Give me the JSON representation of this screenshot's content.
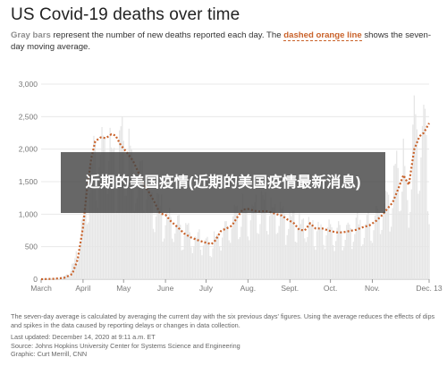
{
  "title": "US Covid-19 deaths over time",
  "subtitle": {
    "gray_bars": "Gray bars",
    "part1": " represent the number of new deaths reported each day. The ",
    "orange_line": "dashed orange line",
    "part2": " shows the seven-day moving average."
  },
  "overlay_text": "近期的美国疫情(近期的美国疫情最新消息)",
  "footnote": "The seven-day average is calculated by averaging the current day with the six previous days' figures. Using the average reduces the effects of dips and spikes in the data caused by reporting delays or changes in data collection.",
  "last_updated": "Last updated: December 14, 2020 at 9:11 a.m. ET",
  "source": "Source: Johns Hopkins University Center for Systems Science and Engineering",
  "graphic": "Graphic: Curt Merrill, CNN",
  "colors": {
    "bars": "#e6e6e6",
    "line": "#c9622a",
    "grid": "#e8e8e8",
    "axis_text": "#777777"
  },
  "chart_data": {
    "type": "bar",
    "bars_description": "daily new deaths",
    "line_description": "seven-day moving average",
    "x_range": [
      "2020-03-01",
      "2020-12-13"
    ],
    "ylim": [
      0,
      3000
    ],
    "yticks": [
      0,
      500,
      1000,
      1500,
      2000,
      2500,
      3000
    ],
    "ytick_labels": [
      "0",
      "500",
      "1,000",
      "1,500",
      "2,000",
      "2,500",
      "3,000"
    ],
    "xticks": [
      {
        "date": "2020-03-01",
        "label": "March"
      },
      {
        "date": "2020-04-01",
        "label": "April"
      },
      {
        "date": "2020-05-01",
        "label": "May"
      },
      {
        "date": "2020-06-01",
        "label": "June"
      },
      {
        "date": "2020-07-01",
        "label": "July"
      },
      {
        "date": "2020-08-01",
        "label": "Aug."
      },
      {
        "date": "2020-09-01",
        "label": "Sept."
      },
      {
        "date": "2020-10-01",
        "label": "Oct."
      },
      {
        "date": "2020-11-01",
        "label": "Nov."
      },
      {
        "date": "2020-12-13",
        "label": "Dec. 13"
      }
    ],
    "moving_average": [
      {
        "date": "2020-03-01",
        "value": 0
      },
      {
        "date": "2020-03-10",
        "value": 5
      },
      {
        "date": "2020-03-18",
        "value": 20
      },
      {
        "date": "2020-03-24",
        "value": 80
      },
      {
        "date": "2020-03-28",
        "value": 300
      },
      {
        "date": "2020-04-01",
        "value": 800
      },
      {
        "date": "2020-04-04",
        "value": 1400
      },
      {
        "date": "2020-04-07",
        "value": 1850
      },
      {
        "date": "2020-04-10",
        "value": 2120
      },
      {
        "date": "2020-04-14",
        "value": 2180
      },
      {
        "date": "2020-04-18",
        "value": 2170
      },
      {
        "date": "2020-04-22",
        "value": 2230
      },
      {
        "date": "2020-04-25",
        "value": 2210
      },
      {
        "date": "2020-04-29",
        "value": 2060
      },
      {
        "date": "2020-05-03",
        "value": 1960
      },
      {
        "date": "2020-05-08",
        "value": 1820
      },
      {
        "date": "2020-05-12",
        "value": 1640
      },
      {
        "date": "2020-05-16",
        "value": 1460
      },
      {
        "date": "2020-05-20",
        "value": 1330
      },
      {
        "date": "2020-05-24",
        "value": 1180
      },
      {
        "date": "2020-05-28",
        "value": 1010
      },
      {
        "date": "2020-06-01",
        "value": 990
      },
      {
        "date": "2020-06-05",
        "value": 890
      },
      {
        "date": "2020-06-10",
        "value": 800
      },
      {
        "date": "2020-06-15",
        "value": 700
      },
      {
        "date": "2020-06-20",
        "value": 640
      },
      {
        "date": "2020-06-25",
        "value": 600
      },
      {
        "date": "2020-07-01",
        "value": 560
      },
      {
        "date": "2020-07-05",
        "value": 540
      },
      {
        "date": "2020-07-08",
        "value": 600
      },
      {
        "date": "2020-07-12",
        "value": 740
      },
      {
        "date": "2020-07-16",
        "value": 780
      },
      {
        "date": "2020-07-20",
        "value": 820
      },
      {
        "date": "2020-07-24",
        "value": 950
      },
      {
        "date": "2020-07-28",
        "value": 1070
      },
      {
        "date": "2020-08-01",
        "value": 1080
      },
      {
        "date": "2020-08-06",
        "value": 1050
      },
      {
        "date": "2020-08-10",
        "value": 1040
      },
      {
        "date": "2020-08-14",
        "value": 1050
      },
      {
        "date": "2020-08-18",
        "value": 1030
      },
      {
        "date": "2020-08-22",
        "value": 1000
      },
      {
        "date": "2020-08-26",
        "value": 980
      },
      {
        "date": "2020-08-30",
        "value": 920
      },
      {
        "date": "2020-09-04",
        "value": 860
      },
      {
        "date": "2020-09-08",
        "value": 760
      },
      {
        "date": "2020-09-12",
        "value": 750
      },
      {
        "date": "2020-09-16",
        "value": 860
      },
      {
        "date": "2020-09-20",
        "value": 780
      },
      {
        "date": "2020-09-25",
        "value": 780
      },
      {
        "date": "2020-10-01",
        "value": 740
      },
      {
        "date": "2020-10-06",
        "value": 720
      },
      {
        "date": "2020-10-10",
        "value": 720
      },
      {
        "date": "2020-10-15",
        "value": 740
      },
      {
        "date": "2020-10-20",
        "value": 760
      },
      {
        "date": "2020-10-25",
        "value": 800
      },
      {
        "date": "2020-10-30",
        "value": 830
      },
      {
        "date": "2020-11-04",
        "value": 900
      },
      {
        "date": "2020-11-08",
        "value": 980
      },
      {
        "date": "2020-11-12",
        "value": 1080
      },
      {
        "date": "2020-11-16",
        "value": 1180
      },
      {
        "date": "2020-11-20",
        "value": 1380
      },
      {
        "date": "2020-11-24",
        "value": 1600
      },
      {
        "date": "2020-11-28",
        "value": 1450
      },
      {
        "date": "2020-12-02",
        "value": 2000
      },
      {
        "date": "2020-12-06",
        "value": 2200
      },
      {
        "date": "2020-12-09",
        "value": 2250
      },
      {
        "date": "2020-12-13",
        "value": 2400
      }
    ],
    "daily_envelope": [
      {
        "date": "2020-03-01",
        "value": 0
      },
      {
        "date": "2020-03-15",
        "value": 20
      },
      {
        "date": "2020-03-22",
        "value": 110
      },
      {
        "date": "2020-03-28",
        "value": 500
      },
      {
        "date": "2020-04-01",
        "value": 1150
      },
      {
        "date": "2020-04-05",
        "value": 1800
      },
      {
        "date": "2020-04-10",
        "value": 2450
      },
      {
        "date": "2020-04-14",
        "value": 2300
      },
      {
        "date": "2020-04-17",
        "value": 2600
      },
      {
        "date": "2020-04-22",
        "value": 2500
      },
      {
        "date": "2020-04-25",
        "value": 2200
      },
      {
        "date": "2020-04-29",
        "value": 2550
      },
      {
        "date": "2020-05-05",
        "value": 2400
      },
      {
        "date": "2020-05-12",
        "value": 1950
      },
      {
        "date": "2020-05-20",
        "value": 1650
      },
      {
        "date": "2020-05-28",
        "value": 1350
      },
      {
        "date": "2020-06-04",
        "value": 1100
      },
      {
        "date": "2020-06-12",
        "value": 1000
      },
      {
        "date": "2020-06-20",
        "value": 850
      },
      {
        "date": "2020-06-28",
        "value": 780
      },
      {
        "date": "2020-07-05",
        "value": 700
      },
      {
        "date": "2020-07-12",
        "value": 950
      },
      {
        "date": "2020-07-20",
        "value": 1100
      },
      {
        "date": "2020-07-28",
        "value": 1350
      },
      {
        "date": "2020-08-05",
        "value": 1300
      },
      {
        "date": "2020-08-12",
        "value": 1400
      },
      {
        "date": "2020-08-20",
        "value": 1250
      },
      {
        "date": "2020-08-28",
        "value": 1150
      },
      {
        "date": "2020-09-05",
        "value": 1100
      },
      {
        "date": "2020-09-12",
        "value": 1050
      },
      {
        "date": "2020-09-20",
        "value": 1000
      },
      {
        "date": "2020-09-28",
        "value": 950
      },
      {
        "date": "2020-10-05",
        "value": 900
      },
      {
        "date": "2020-10-12",
        "value": 950
      },
      {
        "date": "2020-10-20",
        "value": 1050
      },
      {
        "date": "2020-10-28",
        "value": 1050
      },
      {
        "date": "2020-11-04",
        "value": 1200
      },
      {
        "date": "2020-11-12",
        "value": 1400
      },
      {
        "date": "2020-11-18",
        "value": 1950
      },
      {
        "date": "2020-11-24",
        "value": 2200
      },
      {
        "date": "2020-11-27",
        "value": 1300
      },
      {
        "date": "2020-12-02",
        "value": 2850
      },
      {
        "date": "2020-12-06",
        "value": 2550
      },
      {
        "date": "2020-12-09",
        "value": 3100
      },
      {
        "date": "2020-12-13",
        "value": 1600
      }
    ],
    "grid": true
  }
}
